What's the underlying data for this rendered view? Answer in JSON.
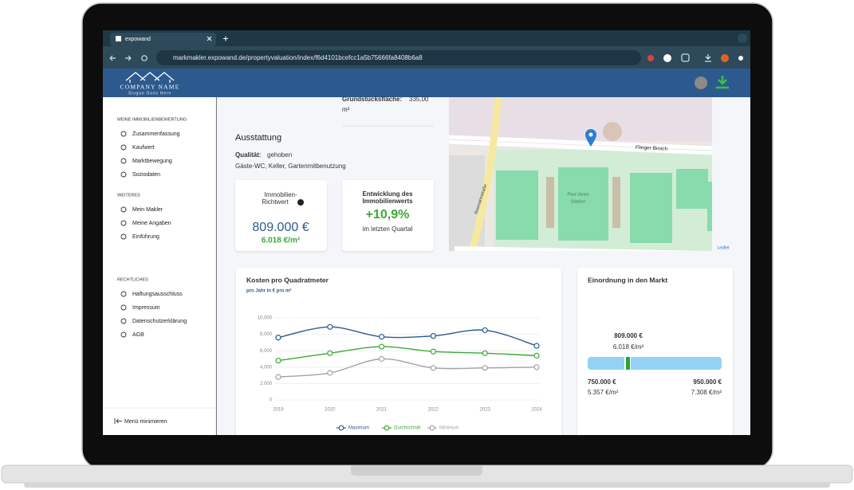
{
  "browser": {
    "tab_title": "expowand",
    "url": "markmakler.expowand.de/propertyvaluation/index/f6d4101bcefcc1a5b75666fa8408b6a8"
  },
  "header": {
    "company": "COMPANY NAME",
    "slogan": "Slogan Goes Here"
  },
  "sidebar": {
    "sections": [
      {
        "title": "MEINE IMMOBILIENBEWERTUNG",
        "items": [
          "Zusammenfassung",
          "Kaufwert",
          "Marktbewegung",
          "Soziodaten"
        ]
      },
      {
        "title": "WEITERES",
        "items": [
          "Mein Makler",
          "Meine Angaben",
          "Einführung"
        ]
      },
      {
        "title": "RECHTLICHES",
        "items": [
          "Haftungsausschluss",
          "Impressum",
          "Datenschutzerklärung",
          "AGB"
        ]
      }
    ],
    "minimize": "Menü minimieren"
  },
  "property": {
    "area_label": "Grundstücksfläche:",
    "area_value": "335,00",
    "area_unit": "m²",
    "equipment_title": "Ausstattung",
    "quality_label": "Qualität:",
    "quality_value": "gehoben",
    "features": "Gäste-WC, Keller, Gartenmitbenutzung"
  },
  "cards": [
    {
      "title_lines": [
        "Immobilien-",
        "Richtwert"
      ],
      "value": "809.000 €",
      "sub": "6.018 €/m²"
    },
    {
      "title_lines": [
        "Entwicklung des",
        "Immobilienwerts"
      ],
      "value": "+10,9%",
      "sub": "im letzten Quartal"
    }
  ],
  "map": {
    "street": "Flinger Broich",
    "stadium_lines": [
      "Paul Janes",
      "Stadion"
    ],
    "road": "Rosmarinstraße",
    "attribution": "Leaflet"
  },
  "chart_data": {
    "type": "line",
    "title": "Kosten pro Quadratmeter",
    "subtitle": "pro Jahr in € pro m²",
    "categories": [
      "2019",
      "2020",
      "2021",
      "2022",
      "2023",
      "2024"
    ],
    "series": [
      {
        "name": "Maximum",
        "color": "#2d5a8e",
        "values": [
          7600,
          8900,
          7700,
          7800,
          8500,
          6600
        ]
      },
      {
        "name": "Durchschnitt",
        "color": "#3aaa35",
        "values": [
          4800,
          5700,
          6500,
          5900,
          5700,
          5400
        ]
      },
      {
        "name": "Minimum",
        "color": "#a3a3a3",
        "values": [
          2800,
          3300,
          5000,
          3900,
          3900,
          4000
        ]
      }
    ],
    "ylim": [
      0,
      10000
    ],
    "yticks": [
      0,
      {
        "value": 2000,
        "label": "2,000"
      },
      {
        "value": 4000,
        "label": "4,000"
      },
      {
        "value": 6000,
        "label": "6,000"
      },
      {
        "value": 8000,
        "label": "8,000"
      },
      {
        "value": 10000,
        "label": "10,000"
      }
    ],
    "grid": true
  },
  "market": {
    "title": "Einordnung in den Markt",
    "current_price": "809.000 €",
    "current_sqm": "6.018 €/m²",
    "low_price": "750.000 €",
    "low_sqm": "5.357 €/m²",
    "high_price": "950.000 €",
    "high_sqm": "7.308 €/m²"
  }
}
